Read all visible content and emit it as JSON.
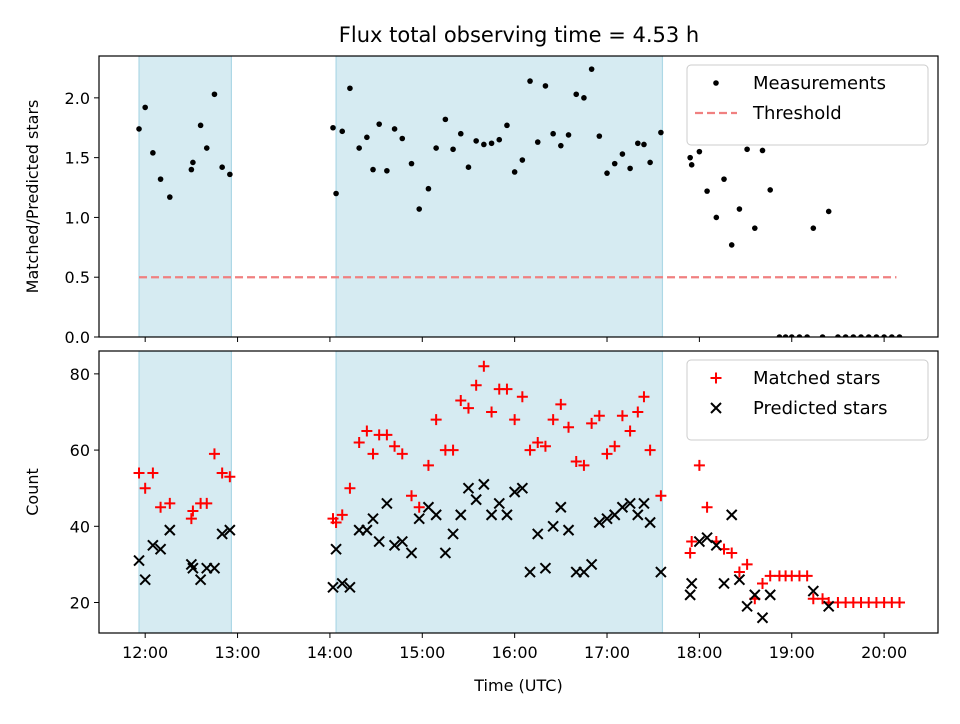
{
  "title": "Flux total observing time = 4.53 h",
  "colors": {
    "shade": "#add8e6",
    "threshold": "#f08080",
    "measurement": "#000000",
    "matched": "#ff0000",
    "predicted": "#000000"
  },
  "chart_data": [
    {
      "type": "scatter",
      "ylabel": "Matched/Predicted stars",
      "ylim": [
        0,
        2.35
      ],
      "yticks": [
        0.0,
        0.5,
        1.0,
        1.5,
        2.0
      ],
      "yticklabels": [
        "0.0",
        "0.5",
        "1.0",
        "1.5",
        "2.0"
      ],
      "xlim": [
        "11:30",
        "20:35"
      ],
      "xticks": [
        "12:00",
        "13:00",
        "14:00",
        "15:00",
        "16:00",
        "17:00",
        "18:00",
        "19:00",
        "20:00"
      ],
      "grid": false,
      "legend_position": "top-right",
      "shaded_intervals": [
        [
          "11:56",
          "12:56"
        ],
        [
          "14:04",
          "17:36"
        ]
      ],
      "threshold": {
        "name": "Threshold",
        "y": 0.5,
        "x_range": [
          "11:56",
          "20:08"
        ],
        "style": "dashed"
      },
      "series": [
        {
          "name": "Measurements",
          "marker": "dot",
          "points": [
            [
              "11:56",
              1.74
            ],
            [
              "12:00",
              1.92
            ],
            [
              "12:05",
              1.54
            ],
            [
              "12:10",
              1.32
            ],
            [
              "12:16",
              1.17
            ],
            [
              "12:30",
              1.4
            ],
            [
              "12:31",
              1.46
            ],
            [
              "12:36",
              1.77
            ],
            [
              "12:40",
              1.58
            ],
            [
              "12:45",
              2.03
            ],
            [
              "12:50",
              1.42
            ],
            [
              "12:55",
              1.36
            ],
            [
              "14:02",
              1.75
            ],
            [
              "14:04",
              1.2
            ],
            [
              "14:08",
              1.72
            ],
            [
              "14:13",
              2.08
            ],
            [
              "14:19",
              1.58
            ],
            [
              "14:24",
              1.67
            ],
            [
              "14:28",
              1.4
            ],
            [
              "14:32",
              1.78
            ],
            [
              "14:37",
              1.39
            ],
            [
              "14:42",
              1.74
            ],
            [
              "14:47",
              1.66
            ],
            [
              "14:53",
              1.45
            ],
            [
              "14:58",
              1.07
            ],
            [
              "15:04",
              1.24
            ],
            [
              "15:09",
              1.58
            ],
            [
              "15:15",
              1.82
            ],
            [
              "15:20",
              1.57
            ],
            [
              "15:25",
              1.7
            ],
            [
              "15:30",
              1.42
            ],
            [
              "15:35",
              1.64
            ],
            [
              "15:40",
              1.61
            ],
            [
              "15:45",
              1.62
            ],
            [
              "15:50",
              1.65
            ],
            [
              "15:55",
              1.77
            ],
            [
              "16:00",
              1.38
            ],
            [
              "16:05",
              1.48
            ],
            [
              "16:10",
              2.14
            ],
            [
              "16:15",
              1.63
            ],
            [
              "16:20",
              2.1
            ],
            [
              "16:25",
              1.7
            ],
            [
              "16:30",
              1.6
            ],
            [
              "16:35",
              1.69
            ],
            [
              "16:40",
              2.03
            ],
            [
              "16:45",
              2.0
            ],
            [
              "16:50",
              2.24
            ],
            [
              "16:55",
              1.68
            ],
            [
              "17:00",
              1.37
            ],
            [
              "17:05",
              1.45
            ],
            [
              "17:10",
              1.53
            ],
            [
              "17:15",
              1.41
            ],
            [
              "17:20",
              1.62
            ],
            [
              "17:24",
              1.61
            ],
            [
              "17:28",
              1.46
            ],
            [
              "17:35",
              1.71
            ],
            [
              "17:54",
              1.5
            ],
            [
              "17:55",
              1.44
            ],
            [
              "18:00",
              1.55
            ],
            [
              "18:05",
              1.22
            ],
            [
              "18:11",
              1.0
            ],
            [
              "18:16",
              1.32
            ],
            [
              "18:21",
              0.77
            ],
            [
              "18:26",
              1.07
            ],
            [
              "18:31",
              1.57
            ],
            [
              "18:36",
              0.91
            ],
            [
              "18:41",
              1.56
            ],
            [
              "18:46",
              1.23
            ],
            [
              "18:52",
              0.0
            ],
            [
              "18:56",
              0.0
            ],
            [
              "19:00",
              0.0
            ],
            [
              "19:05",
              0.0
            ],
            [
              "19:10",
              0.0
            ],
            [
              "19:14",
              0.91
            ],
            [
              "19:20",
              0.0
            ],
            [
              "19:24",
              1.05
            ],
            [
              "19:30",
              0.0
            ],
            [
              "19:35",
              0.0
            ],
            [
              "19:40",
              0.0
            ],
            [
              "19:45",
              0.0
            ],
            [
              "19:50",
              0.0
            ],
            [
              "19:55",
              0.0
            ],
            [
              "20:00",
              0.0
            ],
            [
              "20:05",
              0.0
            ],
            [
              "20:10",
              0.0
            ]
          ]
        }
      ]
    },
    {
      "type": "scatter",
      "xlabel": "Time (UTC)",
      "ylabel": "Count",
      "ylim": [
        12,
        86
      ],
      "yticks": [
        20,
        40,
        60,
        80
      ],
      "yticklabels": [
        "20",
        "40",
        "60",
        "80"
      ],
      "xlim": [
        "11:30",
        "20:35"
      ],
      "xticks": [
        "12:00",
        "13:00",
        "14:00",
        "15:00",
        "16:00",
        "17:00",
        "18:00",
        "19:00",
        "20:00"
      ],
      "grid": false,
      "legend_position": "top-right",
      "shaded_intervals": [
        [
          "11:56",
          "12:56"
        ],
        [
          "14:04",
          "17:36"
        ]
      ],
      "series": [
        {
          "name": "Matched stars",
          "marker": "plus",
          "points": [
            [
              "11:56",
              54
            ],
            [
              "12:00",
              50
            ],
            [
              "12:05",
              54
            ],
            [
              "12:10",
              45
            ],
            [
              "12:16",
              46
            ],
            [
              "12:30",
              42
            ],
            [
              "12:31",
              44
            ],
            [
              "12:36",
              46
            ],
            [
              "12:40",
              46
            ],
            [
              "12:45",
              59
            ],
            [
              "12:50",
              54
            ],
            [
              "12:55",
              53
            ],
            [
              "14:02",
              42
            ],
            [
              "14:04",
              41
            ],
            [
              "14:08",
              43
            ],
            [
              "14:13",
              50
            ],
            [
              "14:19",
              62
            ],
            [
              "14:24",
              65
            ],
            [
              "14:28",
              59
            ],
            [
              "14:32",
              64
            ],
            [
              "14:37",
              64
            ],
            [
              "14:42",
              61
            ],
            [
              "14:47",
              59
            ],
            [
              "14:53",
              48
            ],
            [
              "14:58",
              45
            ],
            [
              "15:04",
              56
            ],
            [
              "15:09",
              68
            ],
            [
              "15:15",
              60
            ],
            [
              "15:20",
              60
            ],
            [
              "15:25",
              73
            ],
            [
              "15:30",
              71
            ],
            [
              "15:35",
              77
            ],
            [
              "15:40",
              82
            ],
            [
              "15:45",
              70
            ],
            [
              "15:50",
              76
            ],
            [
              "15:55",
              76
            ],
            [
              "16:00",
              68
            ],
            [
              "16:05",
              74
            ],
            [
              "16:10",
              60
            ],
            [
              "16:15",
              62
            ],
            [
              "16:20",
              61
            ],
            [
              "16:25",
              68
            ],
            [
              "16:30",
              72
            ],
            [
              "16:35",
              66
            ],
            [
              "16:40",
              57
            ],
            [
              "16:45",
              56
            ],
            [
              "16:50",
              67
            ],
            [
              "16:55",
              69
            ],
            [
              "17:00",
              59
            ],
            [
              "17:05",
              61
            ],
            [
              "17:10",
              69
            ],
            [
              "17:15",
              65
            ],
            [
              "17:20",
              70
            ],
            [
              "17:24",
              74
            ],
            [
              "17:28",
              60
            ],
            [
              "17:35",
              48
            ],
            [
              "17:54",
              33
            ],
            [
              "17:55",
              36
            ],
            [
              "18:00",
              56
            ],
            [
              "18:05",
              45
            ],
            [
              "18:11",
              36
            ],
            [
              "18:16",
              34
            ],
            [
              "18:21",
              33
            ],
            [
              "18:26",
              28
            ],
            [
              "18:31",
              30
            ],
            [
              "18:36",
              21
            ],
            [
              "18:41",
              25
            ],
            [
              "18:46",
              27
            ],
            [
              "18:52",
              27
            ],
            [
              "18:56",
              27
            ],
            [
              "19:00",
              27
            ],
            [
              "19:05",
              27
            ],
            [
              "19:10",
              27
            ],
            [
              "19:14",
              21
            ],
            [
              "19:20",
              21
            ],
            [
              "19:24",
              20
            ],
            [
              "19:30",
              20
            ],
            [
              "19:35",
              20
            ],
            [
              "19:40",
              20
            ],
            [
              "19:45",
              20
            ],
            [
              "19:50",
              20
            ],
            [
              "19:55",
              20
            ],
            [
              "20:00",
              20
            ],
            [
              "20:05",
              20
            ],
            [
              "20:10",
              20
            ]
          ]
        },
        {
          "name": "Predicted stars",
          "marker": "x",
          "points": [
            [
              "11:56",
              31
            ],
            [
              "12:00",
              26
            ],
            [
              "12:05",
              35
            ],
            [
              "12:10",
              34
            ],
            [
              "12:16",
              39
            ],
            [
              "12:30",
              30
            ],
            [
              "12:31",
              29
            ],
            [
              "12:36",
              26
            ],
            [
              "12:40",
              29
            ],
            [
              "12:45",
              29
            ],
            [
              "12:50",
              38
            ],
            [
              "12:55",
              39
            ],
            [
              "14:02",
              24
            ],
            [
              "14:04",
              34
            ],
            [
              "14:08",
              25
            ],
            [
              "14:13",
              24
            ],
            [
              "14:19",
              39
            ],
            [
              "14:24",
              39
            ],
            [
              "14:28",
              42
            ],
            [
              "14:32",
              36
            ],
            [
              "14:37",
              46
            ],
            [
              "14:42",
              35
            ],
            [
              "14:47",
              36
            ],
            [
              "14:53",
              33
            ],
            [
              "14:58",
              42
            ],
            [
              "15:04",
              45
            ],
            [
              "15:09",
              43
            ],
            [
              "15:15",
              33
            ],
            [
              "15:20",
              38
            ],
            [
              "15:25",
              43
            ],
            [
              "15:30",
              50
            ],
            [
              "15:35",
              47
            ],
            [
              "15:40",
              51
            ],
            [
              "15:45",
              43
            ],
            [
              "15:50",
              46
            ],
            [
              "15:55",
              43
            ],
            [
              "16:00",
              49
            ],
            [
              "16:05",
              50
            ],
            [
              "16:10",
              28
            ],
            [
              "16:15",
              38
            ],
            [
              "16:20",
              29
            ],
            [
              "16:25",
              40
            ],
            [
              "16:30",
              45
            ],
            [
              "16:35",
              39
            ],
            [
              "16:40",
              28
            ],
            [
              "16:45",
              28
            ],
            [
              "16:50",
              30
            ],
            [
              "16:55",
              41
            ],
            [
              "17:00",
              42
            ],
            [
              "17:05",
              43
            ],
            [
              "17:10",
              45
            ],
            [
              "17:15",
              46
            ],
            [
              "17:20",
              43
            ],
            [
              "17:24",
              46
            ],
            [
              "17:28",
              41
            ],
            [
              "17:35",
              28
            ],
            [
              "17:54",
              22
            ],
            [
              "17:55",
              25
            ],
            [
              "18:00",
              36
            ],
            [
              "18:05",
              37
            ],
            [
              "18:11",
              35
            ],
            [
              "18:16",
              25
            ],
            [
              "18:21",
              43
            ],
            [
              "18:26",
              26
            ],
            [
              "18:31",
              19
            ],
            [
              "18:36",
              22
            ],
            [
              "18:41",
              16
            ],
            [
              "18:46",
              22
            ],
            [
              "19:14",
              23
            ],
            [
              "19:24",
              19
            ]
          ]
        }
      ]
    }
  ]
}
